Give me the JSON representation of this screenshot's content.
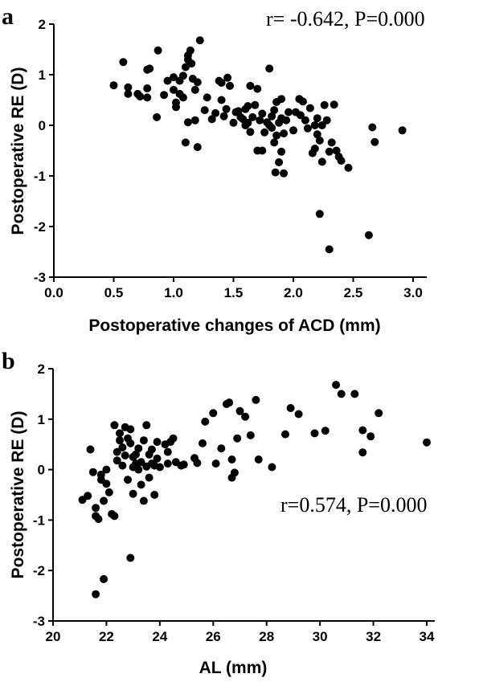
{
  "chart_data": [
    {
      "type": "scatter",
      "panel_label": "a",
      "annotation": "r= -0.642, P=0.000",
      "xlabel": "Postoperative changes of ACD (mm)",
      "ylabel": "Postoperative RE (D)",
      "xlim": [
        0,
        3.2
      ],
      "ylim": [
        -3,
        2
      ],
      "xticks": [
        "0.0",
        "0.5",
        "1.0",
        "1.5",
        "2.0",
        "2.5",
        "3.0"
      ],
      "yticks": [
        "2",
        "1",
        "0",
        "-1",
        "-2",
        "-3"
      ],
      "grid": false,
      "points": [
        [
          0.5,
          0.79
        ],
        [
          0.58,
          1.25
        ],
        [
          0.62,
          0.75
        ],
        [
          0.62,
          0.62
        ],
        [
          0.7,
          0.62
        ],
        [
          0.72,
          0.57
        ],
        [
          0.78,
          1.1
        ],
        [
          0.8,
          1.12
        ],
        [
          0.78,
          0.73
        ],
        [
          0.78,
          0.55
        ],
        [
          0.87,
          1.48
        ],
        [
          0.86,
          0.16
        ],
        [
          0.92,
          0.6
        ],
        [
          0.95,
          0.88
        ],
        [
          1.0,
          0.95
        ],
        [
          1.0,
          0.7
        ],
        [
          1.02,
          0.45
        ],
        [
          1.02,
          0.36
        ],
        [
          1.05,
          0.62
        ],
        [
          1.05,
          0.88
        ],
        [
          1.08,
          0.98
        ],
        [
          1.08,
          0.55
        ],
        [
          1.1,
          1.15
        ],
        [
          1.12,
          1.3
        ],
        [
          1.12,
          1.38
        ],
        [
          1.14,
          1.48
        ],
        [
          1.15,
          1.22
        ],
        [
          1.16,
          0.92
        ],
        [
          1.18,
          0.7
        ],
        [
          1.2,
          0.85
        ],
        [
          1.22,
          1.68
        ],
        [
          1.1,
          -0.34
        ],
        [
          1.12,
          0.06
        ],
        [
          1.18,
          0.1
        ],
        [
          1.2,
          -0.43
        ],
        [
          1.26,
          0.3
        ],
        [
          1.28,
          0.55
        ],
        [
          1.32,
          0.12
        ],
        [
          1.35,
          0.24
        ],
        [
          1.38,
          0.88
        ],
        [
          1.4,
          0.84
        ],
        [
          1.4,
          0.5
        ],
        [
          1.42,
          0.18
        ],
        [
          1.44,
          0.32
        ],
        [
          1.45,
          0.94
        ],
        [
          1.47,
          0.78
        ],
        [
          1.5,
          0.05
        ],
        [
          1.52,
          0.26
        ],
        [
          1.54,
          0.28
        ],
        [
          1.56,
          0.16
        ],
        [
          1.58,
          0.12
        ],
        [
          1.6,
          0.32
        ],
        [
          1.6,
          0.0
        ],
        [
          1.62,
          0.38
        ],
        [
          1.62,
          0.05
        ],
        [
          1.64,
          0.78
        ],
        [
          1.64,
          -0.13
        ],
        [
          1.66,
          0.16
        ],
        [
          1.68,
          0.4
        ],
        [
          1.7,
          0.72
        ],
        [
          1.7,
          -0.5
        ],
        [
          1.72,
          0.1
        ],
        [
          1.74,
          0.23
        ],
        [
          1.74,
          -0.5
        ],
        [
          1.76,
          -0.14
        ],
        [
          1.78,
          0.06
        ],
        [
          1.8,
          1.12
        ],
        [
          1.8,
          0.0
        ],
        [
          1.82,
          -0.05
        ],
        [
          1.82,
          0.18
        ],
        [
          1.84,
          0.3
        ],
        [
          1.84,
          -0.34
        ],
        [
          1.85,
          -0.93
        ],
        [
          1.86,
          -0.2
        ],
        [
          1.86,
          0.46
        ],
        [
          1.88,
          0.05
        ],
        [
          1.88,
          -0.73
        ],
        [
          1.9,
          0.52
        ],
        [
          1.9,
          0.14
        ],
        [
          1.9,
          -0.52
        ],
        [
          1.92,
          -0.95
        ],
        [
          1.92,
          -0.16
        ],
        [
          1.94,
          0.1
        ],
        [
          1.96,
          0.26
        ],
        [
          2.0,
          -0.1
        ],
        [
          2.02,
          0.26
        ],
        [
          2.05,
          0.52
        ],
        [
          2.06,
          0.2
        ],
        [
          2.08,
          0.47
        ],
        [
          2.1,
          0.1
        ],
        [
          2.12,
          -0.06
        ],
        [
          2.14,
          0.34
        ],
        [
          2.16,
          -0.55
        ],
        [
          2.18,
          0.0
        ],
        [
          2.18,
          -0.46
        ],
        [
          2.2,
          0.14
        ],
        [
          2.2,
          -0.18
        ],
        [
          2.22,
          -0.3
        ],
        [
          2.24,
          0.0
        ],
        [
          2.24,
          -0.72
        ],
        [
          2.26,
          0.4
        ],
        [
          2.28,
          0.1
        ],
        [
          2.3,
          -0.52
        ],
        [
          2.32,
          -0.34
        ],
        [
          2.34,
          0.41
        ],
        [
          2.36,
          -0.5
        ],
        [
          2.38,
          -0.62
        ],
        [
          2.4,
          -0.7
        ],
        [
          2.46,
          -0.84
        ],
        [
          2.22,
          -1.75
        ],
        [
          2.3,
          -2.45
        ],
        [
          2.63,
          -2.17
        ],
        [
          2.66,
          -0.04
        ],
        [
          2.68,
          -0.33
        ],
        [
          2.91,
          -0.1
        ]
      ]
    },
    {
      "type": "scatter",
      "panel_label": "b",
      "annotation": "r=0.574, P=0.000",
      "xlabel": "AL (mm)",
      "ylabel": "Postoperative RE (D)",
      "xlim": [
        20,
        35
      ],
      "ylim": [
        -3,
        2
      ],
      "xticks": [
        "20",
        "22",
        "24",
        "26",
        "28",
        "30",
        "32",
        "34"
      ],
      "yticks": [
        "2",
        "1",
        "0",
        "-1",
        "-2",
        "-3"
      ],
      "grid": false,
      "points": [
        [
          21.1,
          -0.6
        ],
        [
          21.3,
          -0.52
        ],
        [
          21.4,
          0.4
        ],
        [
          21.5,
          -0.05
        ],
        [
          21.6,
          -0.92
        ],
        [
          21.6,
          -0.76
        ],
        [
          21.7,
          -0.98
        ],
        [
          21.6,
          -2.47
        ],
        [
          21.9,
          -2.17
        ],
        [
          21.8,
          -0.2
        ],
        [
          21.8,
          -0.1
        ],
        [
          21.9,
          -0.62
        ],
        [
          22.0,
          0.0
        ],
        [
          22.0,
          -0.28
        ],
        [
          22.1,
          -0.45
        ],
        [
          22.2,
          -0.88
        ],
        [
          22.3,
          -0.92
        ],
        [
          22.3,
          0.88
        ],
        [
          22.4,
          0.35
        ],
        [
          22.4,
          0.18
        ],
        [
          22.5,
          0.72
        ],
        [
          22.5,
          0.58
        ],
        [
          22.6,
          0.08
        ],
        [
          22.6,
          0.44
        ],
        [
          22.7,
          0.84
        ],
        [
          22.7,
          0.28
        ],
        [
          22.8,
          0.62
        ],
        [
          22.8,
          -0.2
        ],
        [
          22.9,
          0.52
        ],
        [
          22.9,
          0.8
        ],
        [
          22.9,
          -1.75
        ],
        [
          23.0,
          0.05
        ],
        [
          23.0,
          0.25
        ],
        [
          23.0,
          -0.48
        ],
        [
          23.1,
          0.3
        ],
        [
          23.1,
          0.12
        ],
        [
          23.2,
          0.42
        ],
        [
          23.2,
          0.0
        ],
        [
          23.3,
          0.15
        ],
        [
          23.3,
          -0.3
        ],
        [
          23.4,
          0.58
        ],
        [
          23.4,
          -0.62
        ],
        [
          23.5,
          0.06
        ],
        [
          23.5,
          0.88
        ],
        [
          23.6,
          0.3
        ],
        [
          23.6,
          -0.16
        ],
        [
          23.7,
          0.12
        ],
        [
          23.7,
          0.4
        ],
        [
          23.8,
          0.08
        ],
        [
          23.8,
          -0.5
        ],
        [
          23.9,
          0.55
        ],
        [
          23.9,
          0.22
        ],
        [
          24.0,
          0.05
        ],
        [
          24.2,
          0.5
        ],
        [
          24.3,
          0.35
        ],
        [
          24.3,
          0.12
        ],
        [
          24.4,
          0.55
        ],
        [
          24.5,
          0.62
        ],
        [
          24.6,
          0.15
        ],
        [
          24.8,
          0.08
        ],
        [
          24.9,
          0.1
        ],
        [
          25.3,
          0.23
        ],
        [
          25.4,
          0.13
        ],
        [
          25.6,
          0.52
        ],
        [
          25.7,
          0.95
        ],
        [
          26.0,
          1.12
        ],
        [
          26.1,
          0.12
        ],
        [
          26.3,
          0.42
        ],
        [
          26.5,
          1.3
        ],
        [
          26.6,
          1.33
        ],
        [
          26.7,
          0.2
        ],
        [
          26.7,
          -0.16
        ],
        [
          26.8,
          -0.06
        ],
        [
          26.9,
          0.62
        ],
        [
          27.0,
          1.16
        ],
        [
          27.2,
          1.05
        ],
        [
          27.4,
          0.68
        ],
        [
          27.6,
          1.38
        ],
        [
          27.7,
          0.2
        ],
        [
          28.2,
          0.05
        ],
        [
          28.7,
          0.7
        ],
        [
          28.9,
          1.22
        ],
        [
          29.2,
          1.1
        ],
        [
          29.8,
          0.72
        ],
        [
          30.2,
          0.77
        ],
        [
          30.6,
          1.68
        ],
        [
          30.8,
          1.5
        ],
        [
          31.3,
          1.5
        ],
        [
          31.6,
          0.78
        ],
        [
          31.6,
          0.34
        ],
        [
          31.9,
          0.66
        ],
        [
          32.2,
          1.12
        ],
        [
          34.0,
          0.54
        ]
      ]
    }
  ]
}
